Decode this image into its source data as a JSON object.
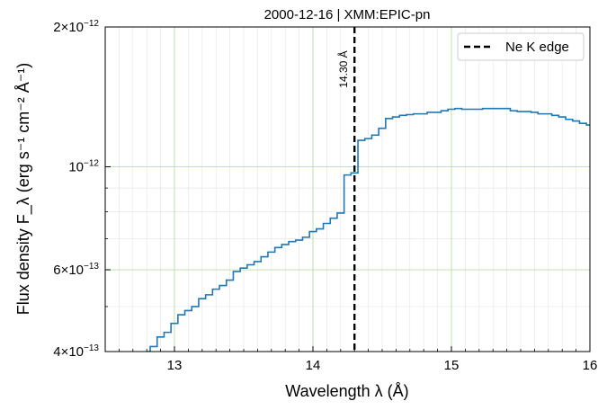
{
  "chart_data": {
    "type": "line",
    "drawstyle": "steps-mid",
    "title": "2000-12-16 | XMM:EPIC-pn",
    "xlabel": "Wavelength λ (Å)",
    "ylabel": "Flux density F_λ (erg s⁻¹ cm⁻² Å⁻¹)",
    "xlim": [
      12.5,
      16.0
    ],
    "ylim": [
      4e-13,
      2e-12
    ],
    "yscale": "log",
    "grid": true,
    "x_ticks": [
      {
        "value": 13,
        "label": "13"
      },
      {
        "value": 14,
        "label": "14"
      },
      {
        "value": 15,
        "label": "15"
      },
      {
        "value": 16,
        "label": "16"
      }
    ],
    "y_ticks": [
      {
        "value": 4e-13,
        "mant": "4",
        "exp": "−13"
      },
      {
        "value": 6e-13,
        "mant": "6",
        "exp": "−13"
      },
      {
        "value": 1e-12,
        "mant": "",
        "exp": "−12"
      },
      {
        "value": 2e-12,
        "mant": "2",
        "exp": "−12"
      }
    ],
    "series": [
      {
        "color": "#1f77b4",
        "x": [
          12.8,
          12.85,
          12.9,
          12.95,
          13.0,
          13.05,
          13.1,
          13.15,
          13.2,
          13.25,
          13.3,
          13.35,
          13.4,
          13.45,
          13.5,
          13.55,
          13.6,
          13.65,
          13.7,
          13.75,
          13.8,
          13.85,
          13.9,
          13.95,
          14.0,
          14.05,
          14.1,
          14.15,
          14.2,
          14.25,
          14.3,
          14.35,
          14.4,
          14.45,
          14.5,
          14.55,
          14.6,
          14.65,
          14.7,
          14.75,
          14.8,
          14.85,
          14.9,
          14.95,
          15.0,
          15.05,
          15.1,
          15.15,
          15.2,
          15.25,
          15.3,
          15.35,
          15.4,
          15.45,
          15.5,
          15.55,
          15.6,
          15.65,
          15.7,
          15.75,
          15.8,
          15.85,
          15.9,
          15.95,
          16.0
        ],
        "y": [
          4e-13,
          4.1e-13,
          4.3e-13,
          4.4e-13,
          4.6e-13,
          4.8e-13,
          4.9e-13,
          5e-13,
          5.2e-13,
          5.3e-13,
          5.45e-13,
          5.55e-13,
          5.7e-13,
          5.95e-13,
          6.05e-13,
          6.15e-13,
          6.25e-13,
          6.4e-13,
          6.55e-13,
          6.7e-13,
          6.8e-13,
          6.9e-13,
          6.95e-13,
          7.05e-13,
          7.25e-13,
          7.35e-13,
          7.55e-13,
          7.75e-13,
          7.95e-13,
          9.6e-13,
          9.7e-13,
          1.14e-12,
          1.15e-12,
          1.17e-12,
          1.21e-12,
          1.27e-12,
          1.28e-12,
          1.29e-12,
          1.295e-12,
          1.3e-12,
          1.3e-12,
          1.31e-12,
          1.31e-12,
          1.32e-12,
          1.33e-12,
          1.335e-12,
          1.33e-12,
          1.33e-12,
          1.33e-12,
          1.335e-12,
          1.335e-12,
          1.335e-12,
          1.335e-12,
          1.32e-12,
          1.315e-12,
          1.315e-12,
          1.31e-12,
          1.3e-12,
          1.3e-12,
          1.29e-12,
          1.28e-12,
          1.265e-12,
          1.255e-12,
          1.24e-12,
          1.23e-12
        ]
      }
    ],
    "reference_line": {
      "x": 14.3,
      "label": "Ne K edge",
      "annotation": "14.30 Å",
      "color": "#000000",
      "style": "dashed"
    },
    "legend": {
      "position": "top-right",
      "entries": [
        "Ne K edge"
      ]
    }
  }
}
